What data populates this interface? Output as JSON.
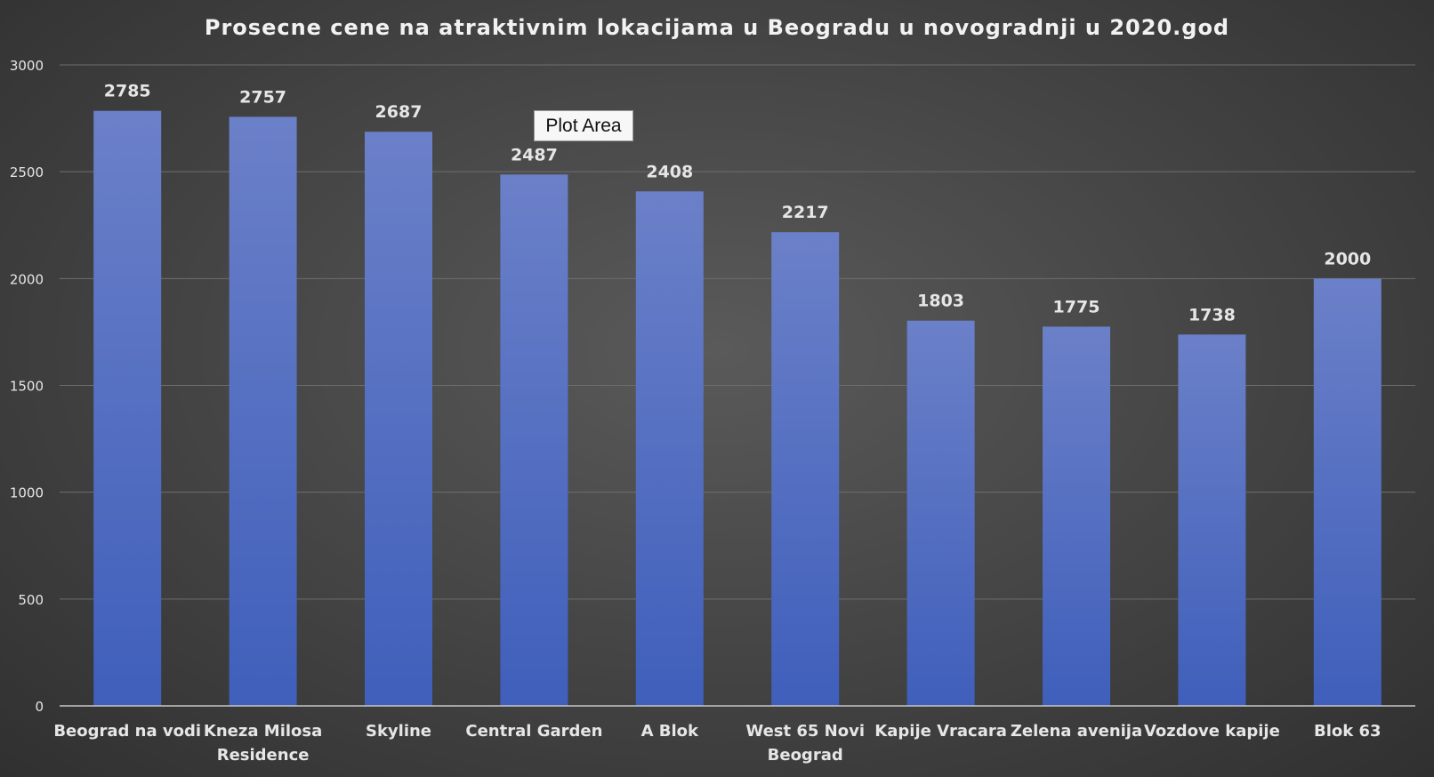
{
  "chart_data": {
    "type": "bar",
    "title": "Prosecne cene na atraktivnim lokacijama u Beogradu u novogradnji u 2020.god",
    "categories": [
      "Beograd na vodi",
      "Kneza Milosa Residence",
      "Skyline",
      "Central Garden",
      "A Blok",
      "West 65 Novi Beograd",
      "Kapije Vracara",
      "Zelena avenija",
      "Vozdove kapije",
      "Blok 63"
    ],
    "series": [
      {
        "values": [
          2785,
          2757,
          2687,
          2487,
          2408,
          2217,
          1803,
          1775,
          1738,
          2000
        ]
      }
    ],
    "ylim": [
      0,
      3000
    ],
    "yticks": [
      0,
      500,
      1000,
      1500,
      2000,
      2500,
      3000
    ],
    "grid": true,
    "legend": "none",
    "colors": {
      "bar_top": "#6b80c8",
      "bar_bottom": "#3f5fbb",
      "text": "#e6e6e6",
      "grid": "#6e6e6e",
      "axis": "#c8c8c8"
    }
  },
  "tooltip": {
    "label": "Plot Area"
  }
}
